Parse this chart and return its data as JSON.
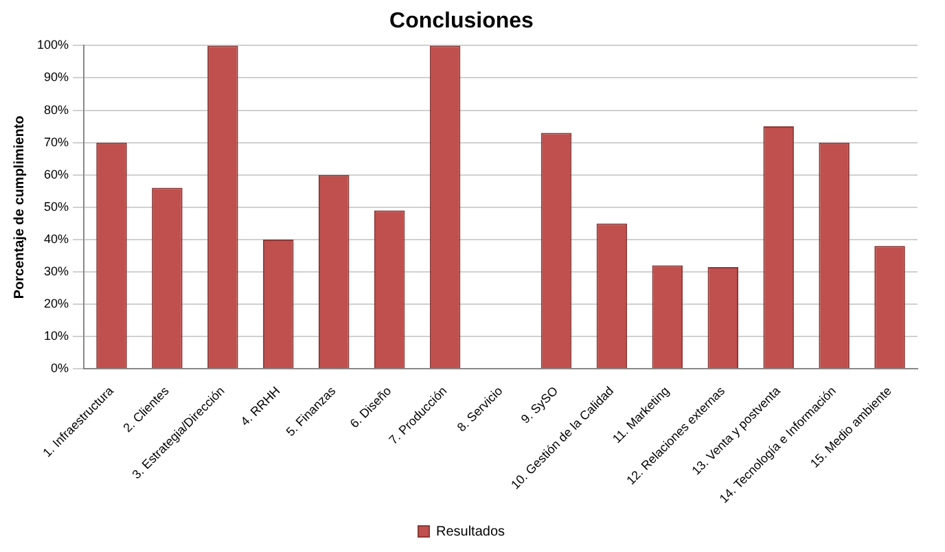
{
  "chart_data": {
    "type": "bar",
    "title": "Conclusiones",
    "ylabel": "Porcentaje de cumplimiento",
    "categories": [
      "1. Infraestructura",
      "2. Clientes",
      "3. Estrategia/Dirección",
      "4. RRHH",
      "5. Finanzas",
      "6. Diseño",
      "7. Producción",
      "8. Servicio",
      "9. SySO",
      "10. Gestión de la Calidad",
      "11. Marketing",
      "12. Relaciones externas",
      "13. Venta y postventa",
      "14. Tecnología e Información",
      "15. Medio ambiente"
    ],
    "series": [
      {
        "name": "Resultados",
        "color": "#c0504d",
        "values": [
          70,
          56,
          100,
          40,
          60,
          49,
          100,
          0,
          73,
          45,
          32,
          31.5,
          75,
          70,
          38
        ]
      }
    ],
    "ylim": [
      0,
      100
    ],
    "yticks": [
      {
        "value": 0,
        "label": "0%"
      },
      {
        "value": 10,
        "label": "10%"
      },
      {
        "value": 20,
        "label": "20%"
      },
      {
        "value": 30,
        "label": "30%"
      },
      {
        "value": 40,
        "label": "40%"
      },
      {
        "value": 50,
        "label": "50%"
      },
      {
        "value": 60,
        "label": "60%"
      },
      {
        "value": 70,
        "label": "70%"
      },
      {
        "value": 80,
        "label": "80%"
      },
      {
        "value": 90,
        "label": "90%"
      },
      {
        "value": 100,
        "label": "100%"
      }
    ],
    "grid": "y",
    "legend": "bottom"
  }
}
